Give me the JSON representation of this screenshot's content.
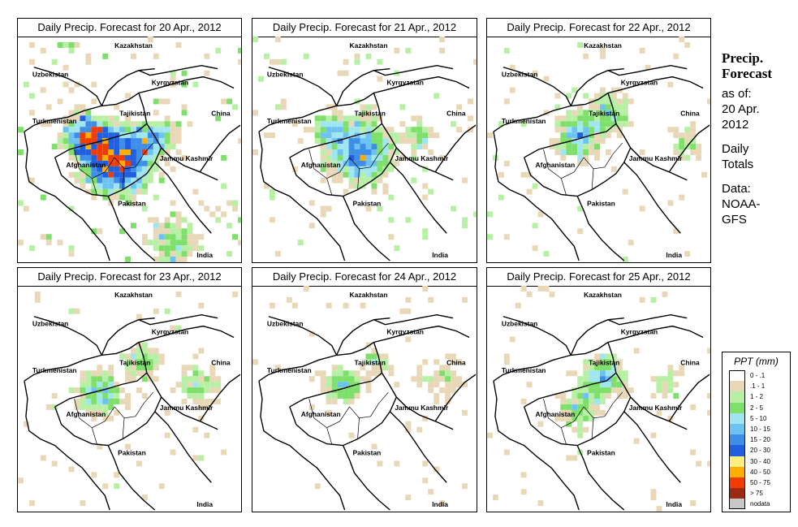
{
  "panels": [
    {
      "title": "Daily Precip. Forecast for  20 Apr., 2012",
      "intensity": 1.0
    },
    {
      "title": "Daily Precip. Forecast for  21 Apr., 2012",
      "intensity": 0.75
    },
    {
      "title": "Daily Precip. Forecast for  22 Apr., 2012",
      "intensity": 0.6
    },
    {
      "title": "Daily Precip. Forecast for  23 Apr., 2012",
      "intensity": 0.55
    },
    {
      "title": "Daily Precip. Forecast for  24 Apr., 2012",
      "intensity": 0.5
    },
    {
      "title": "Daily Precip. Forecast for  25 Apr., 2012",
      "intensity": 0.55
    }
  ],
  "map_labels": {
    "kazakhstan": "Kazakhstan",
    "uzbekistan": "Uzbekistan",
    "kyrgyzstan": "Kyrgyzstan",
    "tajikistan": "Tajikistan",
    "turkmenistan": "Turkmenistan",
    "china": "China",
    "afghanistan": "Afghanistan",
    "jammu_kashmir": "Jammu Kashmir",
    "pakistan": "Pakistan",
    "india": "India"
  },
  "side": {
    "heading_line1": "Precip.",
    "heading_line2": "Forecast",
    "asof_line1": "as of:",
    "asof_line2": "20 Apr.",
    "asof_line3": "2012",
    "totals_line1": "Daily",
    "totals_line2": "Totals",
    "data_line1": "Data:",
    "data_line2": "NOAA-",
    "data_line3": "GFS"
  },
  "legend": {
    "title": "PPT (mm)",
    "items": [
      {
        "label": "0 - .1",
        "color": "#ffffff"
      },
      {
        "label": ".1 - 1",
        "color": "#e8d8b8"
      },
      {
        "label": "1 - 2",
        "color": "#b7f0a4"
      },
      {
        "label": "2 - 5",
        "color": "#7ee06a"
      },
      {
        "label": "5 - 10",
        "color": "#a0e6f0"
      },
      {
        "label": "10 - 15",
        "color": "#6cc2f2"
      },
      {
        "label": "15 - 20",
        "color": "#3e8ee8"
      },
      {
        "label": "20 - 30",
        "color": "#1f5fe0"
      },
      {
        "label": "30 - 40",
        "color": "#ffee80"
      },
      {
        "label": "40 - 50",
        "color": "#ffae00"
      },
      {
        "label": "50 - 75",
        "color": "#f03c00"
      },
      {
        "label": "> 75",
        "color": "#9a2a14"
      },
      {
        "label": "nodata",
        "color": "#c8c8c8"
      }
    ]
  }
}
